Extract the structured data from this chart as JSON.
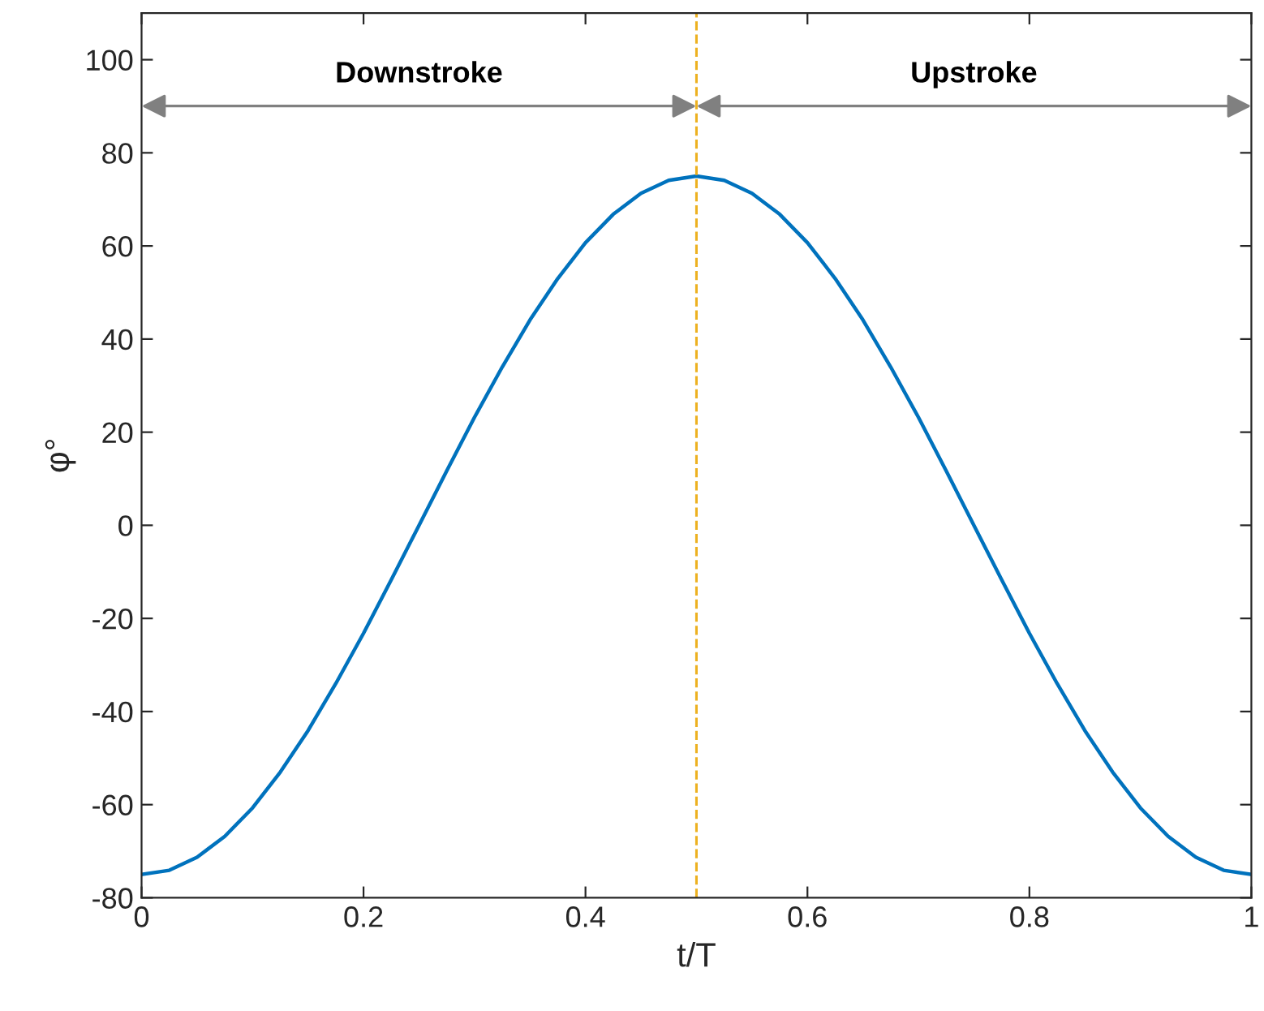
{
  "chart_data": {
    "type": "line",
    "xlabel": "t/T",
    "ylabel": "φ°",
    "x": [
      0,
      0.025,
      0.05,
      0.075,
      0.1,
      0.125,
      0.15,
      0.175,
      0.2,
      0.225,
      0.25,
      0.275,
      0.3,
      0.325,
      0.35,
      0.375,
      0.4,
      0.425,
      0.45,
      0.475,
      0.5,
      0.525,
      0.55,
      0.575,
      0.6,
      0.625,
      0.65,
      0.675,
      0.7,
      0.725,
      0.75,
      0.775,
      0.8,
      0.825,
      0.85,
      0.875,
      0.9,
      0.925,
      0.95,
      0.975,
      1
    ],
    "series": [
      {
        "color": "#0072bd",
        "values": [
          -75,
          -74.1,
          -71.3,
          -66.8,
          -60.7,
          -53,
          -44.1,
          -34,
          -23.2,
          -11.7,
          0,
          11.7,
          23.2,
          34,
          44.1,
          53,
          60.7,
          66.8,
          71.3,
          74.1,
          75,
          74.1,
          71.3,
          66.8,
          60.7,
          53,
          44.1,
          34,
          23.2,
          11.7,
          0,
          -11.7,
          -23.2,
          -34,
          -44.1,
          -53,
          -60.7,
          -66.8,
          -71.3,
          -74.1,
          -75
        ]
      }
    ],
    "xlim": [
      0,
      1
    ],
    "xticks": [
      0,
      0.2,
      0.4,
      0.6,
      0.8,
      1
    ],
    "ylim": [
      -80,
      110
    ],
    "yticks": [
      -80,
      -60,
      -40,
      -20,
      0,
      20,
      40,
      60,
      80,
      100
    ],
    "ref_lines": [
      {
        "axis": "x",
        "value": 0.5,
        "color": "#edb120",
        "line_style": "dashed"
      }
    ],
    "annotations": [
      "Downstroke",
      "Upstroke"
    ],
    "grid": false,
    "legend": false,
    "marker": "none",
    "line_style": "solid"
  }
}
